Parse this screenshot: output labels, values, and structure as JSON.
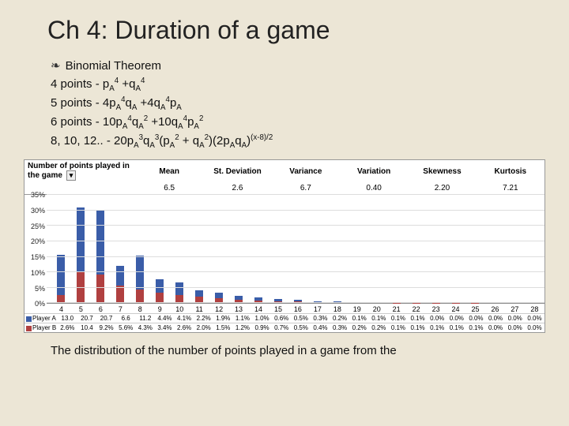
{
  "title": "Ch 4: Duration of a game",
  "bullets": {
    "l1": "Binomial Theorem",
    "l2_prefix": "4 points - p",
    "l2_mid": " +q",
    "l3_prefix": "5 points - 4p",
    "l3_q": "q",
    "l3_plus": " +4q",
    "l3_p": "p",
    "l4_prefix": "6 points - 10p",
    "l4_plus": " +10q",
    "l5_prefix": "8, 10, 12.. - 20p",
    "l5_mid1": "q",
    "l5_open": "(p",
    "l5_plus": " + q",
    "l5_close": ")(2p",
    "l5_q2": "q",
    "l5_exp": "(x-8)/2",
    "sub_a": "A"
  },
  "stats": {
    "label": "Number of points played in the game",
    "headers": [
      "Mean",
      "St. Deviation",
      "Variance",
      "Variation",
      "Skewness",
      "Kurtosis"
    ],
    "values": [
      "6.5",
      "2.6",
      "6.7",
      "0.40",
      "2.20",
      "7.21"
    ]
  },
  "chart": {
    "ymax": 35,
    "ystep": 5,
    "categories": [
      "4",
      "5",
      "6",
      "7",
      "8",
      "9",
      "10",
      "11",
      "12",
      "13",
      "14",
      "15",
      "16",
      "17",
      "18",
      "19",
      "20",
      "21",
      "22",
      "23",
      "24",
      "25",
      "26",
      "27",
      "28"
    ],
    "series_a_name": "Player A",
    "series_b_name": "Player B",
    "color_a": "#3a5da8",
    "color_b": "#b04040",
    "series_a": [
      13.0,
      20.7,
      20.7,
      6.6,
      11.2,
      4.4,
      4.1,
      2.2,
      1.9,
      1.1,
      1.0,
      0.6,
      0.5,
      0.3,
      0.2,
      0.1,
      0.1,
      0.1,
      0.1,
      0.0,
      0.0,
      0.0,
      0.0,
      0.0,
      0.0
    ],
    "series_b": [
      2.6,
      10.4,
      9.2,
      5.6,
      4.3,
      3.4,
      2.6,
      2.0,
      1.5,
      1.2,
      0.9,
      0.7,
      0.5,
      0.4,
      0.3,
      0.2,
      0.2,
      0.1,
      0.1,
      0.1,
      0.1,
      0.1,
      0.0,
      0.0,
      0.0
    ],
    "row_a": [
      "13.0",
      "20.7",
      "20.7",
      "6.6",
      "11.2",
      "4.4%",
      "4.1%",
      "2.2%",
      "1.9%",
      "1.1%",
      "1.0%",
      "0.6%",
      "0.5%",
      "0.3%",
      "0.2%",
      "0.1%",
      "0.1%",
      "0.1%",
      "0.1%",
      "0.0%",
      "0.0%",
      "0.0%",
      "0.0%",
      "0.0%",
      "0.0%"
    ],
    "row_b": [
      "2.6%",
      "10.4",
      "9.2%",
      "5.6%",
      "4.3%",
      "3.4%",
      "2.6%",
      "2.0%",
      "1.5%",
      "1.2%",
      "0.9%",
      "0.7%",
      "0.5%",
      "0.4%",
      "0.3%",
      "0.2%",
      "0.2%",
      "0.1%",
      "0.1%",
      "0.1%",
      "0.1%",
      "0.1%",
      "0.0%",
      "0.0%",
      "0.0%"
    ]
  },
  "caption": "The distribution of the number of points played in a game from the"
}
